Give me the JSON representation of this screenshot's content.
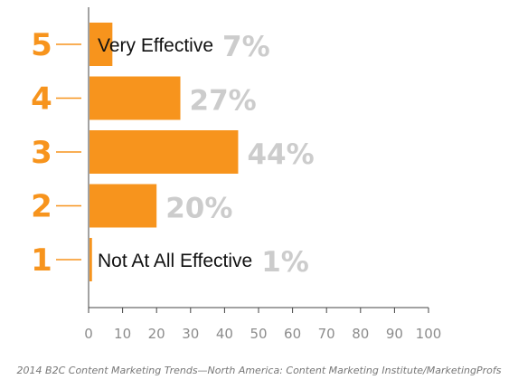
{
  "chart_data": {
    "type": "bar",
    "orientation": "horizontal",
    "categories": [
      "5",
      "4",
      "3",
      "2",
      "1"
    ],
    "values": [
      7,
      27,
      44,
      20,
      1
    ],
    "value_labels": [
      "7%",
      "27%",
      "44%",
      "20%",
      "1%"
    ],
    "bar_annotations": [
      "Very Effective",
      "",
      "",
      "",
      "Not At All Effective"
    ],
    "xlim": [
      0,
      100
    ],
    "xticks": [
      0,
      10,
      20,
      30,
      40,
      50,
      60,
      70,
      80,
      90,
      100
    ],
    "grid": false,
    "legend": "none"
  },
  "colors": {
    "bar": "#F7941D",
    "rating": "#F7941D",
    "percent": "#CCCCCC",
    "axis": "#444444",
    "tick_text": "#8C8C8C",
    "annotation": "#111111",
    "caption": "#777777"
  },
  "source": "2014 B2C Content Marketing Trends—North America: Content Marketing Institute/MarketingProfs"
}
